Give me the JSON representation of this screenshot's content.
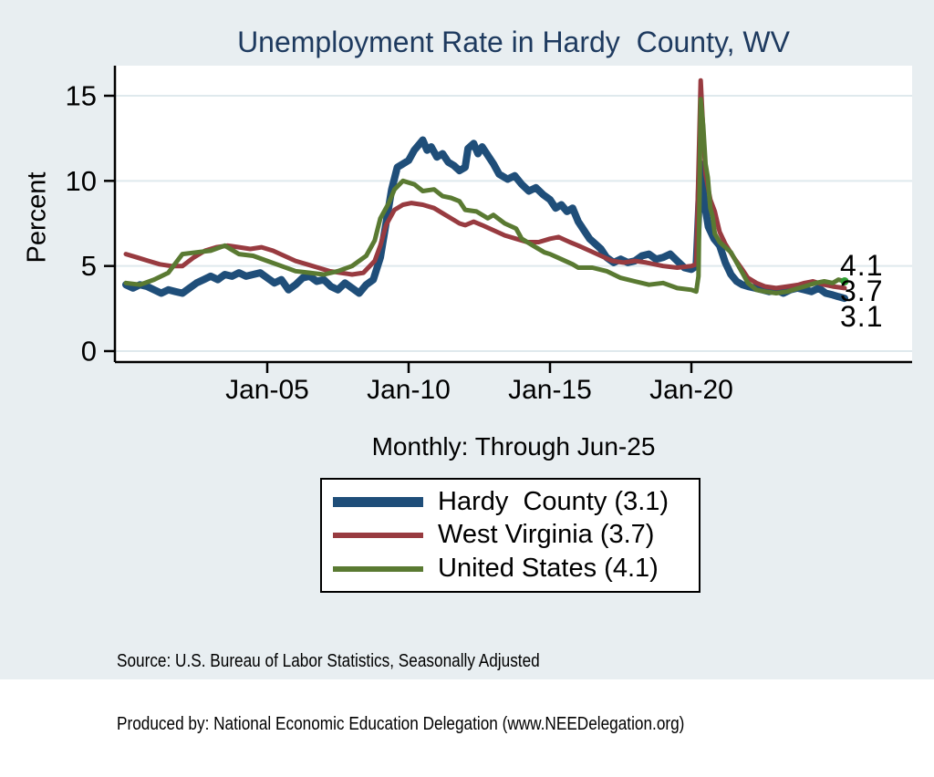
{
  "title": "Unemployment Rate in Hardy  County, WV",
  "subtitle": "Monthly: Through Jun-25",
  "end_labels": [
    "4.1",
    "3.7",
    "3.1"
  ],
  "legend": {
    "items": [
      {
        "label": "Hardy  County (3.1)",
        "color": "#1f4e79",
        "swatch_height": 11
      },
      {
        "label": "West Virginia (3.7)",
        "color": "#983b40",
        "swatch_height": 6
      },
      {
        "label": "United States (4.1)",
        "color": "#5a7a32",
        "swatch_height": 6
      }
    ]
  },
  "notes": [
    "Source: U.S. Bureau of Labor Statistics, Seasonally Adjusted",
    "Produced by: National Economic Education Delegation (www.NEEDelegation.org)"
  ],
  "colors": {
    "background": "#e8eef1",
    "plot_background": "#ffffff",
    "gridline": "#dfe9ed",
    "axis": "#000000",
    "title_text": "#1e3a5f",
    "hardy_navy": "#1f4e79",
    "wv_maroon": "#983b40",
    "us_olive": "#5a7a32",
    "end_marker_green": "#2f9e33"
  },
  "chart_data": {
    "type": "line",
    "title": "Unemployment Rate in Hardy  County, WV",
    "xlabel": "Monthly: Through Jun-25",
    "ylabel": "Percent",
    "ylim": [
      0,
      16
    ],
    "grid": "horizontal",
    "legend_position": "below",
    "x_unit": "decimal_year",
    "x_ticks": {
      "labels": [
        "Jan-05",
        "Jan-10",
        "Jan-15",
        "Jan-20"
      ],
      "years": [
        2005,
        2010,
        2015,
        2020
      ]
    },
    "y_ticks": [
      0,
      5,
      10,
      15
    ],
    "series": [
      {
        "name": "Hardy County",
        "latest_value": 3.1,
        "color": "#1f4e79",
        "line_width": 8,
        "end_marker": false,
        "points": [
          [
            2000.0,
            3.9
          ],
          [
            2000.25,
            3.7
          ],
          [
            2000.5,
            3.9
          ],
          [
            2000.75,
            3.8
          ],
          [
            2001.0,
            3.6
          ],
          [
            2001.25,
            3.4
          ],
          [
            2001.5,
            3.6
          ],
          [
            2001.75,
            3.5
          ],
          [
            2002.0,
            3.4
          ],
          [
            2002.25,
            3.7
          ],
          [
            2002.5,
            4.0
          ],
          [
            2002.75,
            4.2
          ],
          [
            2003.0,
            4.4
          ],
          [
            2003.25,
            4.2
          ],
          [
            2003.5,
            4.5
          ],
          [
            2003.75,
            4.4
          ],
          [
            2004.0,
            4.6
          ],
          [
            2004.25,
            4.4
          ],
          [
            2004.5,
            4.5
          ],
          [
            2004.75,
            4.6
          ],
          [
            2005.0,
            4.3
          ],
          [
            2005.25,
            4.0
          ],
          [
            2005.5,
            4.2
          ],
          [
            2005.75,
            3.6
          ],
          [
            2006.0,
            3.9
          ],
          [
            2006.25,
            4.3
          ],
          [
            2006.5,
            4.4
          ],
          [
            2006.75,
            4.1
          ],
          [
            2007.0,
            4.2
          ],
          [
            2007.25,
            3.8
          ],
          [
            2007.5,
            3.6
          ],
          [
            2007.75,
            4.0
          ],
          [
            2008.0,
            3.7
          ],
          [
            2008.25,
            3.4
          ],
          [
            2008.5,
            3.9
          ],
          [
            2008.75,
            4.2
          ],
          [
            2009.0,
            5.5
          ],
          [
            2009.2,
            7.5
          ],
          [
            2009.4,
            9.5
          ],
          [
            2009.6,
            10.8
          ],
          [
            2009.8,
            11.0
          ],
          [
            2010.0,
            11.2
          ],
          [
            2010.2,
            11.8
          ],
          [
            2010.4,
            12.2
          ],
          [
            2010.5,
            12.4
          ],
          [
            2010.65,
            11.8
          ],
          [
            2010.8,
            12.0
          ],
          [
            2011.0,
            11.4
          ],
          [
            2011.2,
            11.6
          ],
          [
            2011.4,
            11.1
          ],
          [
            2011.6,
            10.9
          ],
          [
            2011.8,
            10.6
          ],
          [
            2012.0,
            10.8
          ],
          [
            2012.1,
            11.9
          ],
          [
            2012.3,
            12.2
          ],
          [
            2012.45,
            11.6
          ],
          [
            2012.6,
            12.0
          ],
          [
            2012.8,
            11.5
          ],
          [
            2013.0,
            11.0
          ],
          [
            2013.2,
            10.4
          ],
          [
            2013.5,
            10.1
          ],
          [
            2013.75,
            10.3
          ],
          [
            2014.0,
            9.8
          ],
          [
            2014.25,
            9.4
          ],
          [
            2014.5,
            9.6
          ],
          [
            2014.75,
            9.2
          ],
          [
            2015.0,
            8.9
          ],
          [
            2015.2,
            8.4
          ],
          [
            2015.4,
            8.6
          ],
          [
            2015.6,
            8.2
          ],
          [
            2015.8,
            8.4
          ],
          [
            2016.0,
            7.6
          ],
          [
            2016.2,
            7.1
          ],
          [
            2016.4,
            6.6
          ],
          [
            2016.6,
            6.3
          ],
          [
            2016.8,
            6.0
          ],
          [
            2017.0,
            5.5
          ],
          [
            2017.25,
            5.2
          ],
          [
            2017.5,
            5.4
          ],
          [
            2017.75,
            5.2
          ],
          [
            2018.0,
            5.3
          ],
          [
            2018.25,
            5.6
          ],
          [
            2018.5,
            5.7
          ],
          [
            2018.75,
            5.4
          ],
          [
            2019.0,
            5.5
          ],
          [
            2019.25,
            5.7
          ],
          [
            2019.5,
            5.3
          ],
          [
            2019.75,
            4.9
          ],
          [
            2020.0,
            4.8
          ],
          [
            2020.17,
            5.0
          ],
          [
            2020.33,
            11.0
          ],
          [
            2020.45,
            8.8
          ],
          [
            2020.6,
            7.3
          ],
          [
            2020.8,
            6.6
          ],
          [
            2021.0,
            6.2
          ],
          [
            2021.2,
            5.2
          ],
          [
            2021.4,
            4.5
          ],
          [
            2021.6,
            4.1
          ],
          [
            2021.8,
            3.9
          ],
          [
            2022.0,
            3.8
          ],
          [
            2022.25,
            3.7
          ],
          [
            2022.5,
            3.6
          ],
          [
            2022.75,
            3.5
          ],
          [
            2023.0,
            3.6
          ],
          [
            2023.25,
            3.4
          ],
          [
            2023.5,
            3.6
          ],
          [
            2023.75,
            3.7
          ],
          [
            2024.0,
            3.6
          ],
          [
            2024.25,
            3.5
          ],
          [
            2024.5,
            3.7
          ],
          [
            2024.75,
            3.4
          ],
          [
            2025.0,
            3.3
          ],
          [
            2025.2,
            3.2
          ],
          [
            2025.42,
            3.1
          ]
        ]
      },
      {
        "name": "West Virginia",
        "latest_value": 3.7,
        "color": "#983b40",
        "line_width": 5,
        "end_marker": false,
        "points": [
          [
            2000.0,
            5.7
          ],
          [
            2000.4,
            5.5
          ],
          [
            2000.8,
            5.3
          ],
          [
            2001.2,
            5.1
          ],
          [
            2001.6,
            5.0
          ],
          [
            2002.0,
            5.0
          ],
          [
            2002.4,
            5.5
          ],
          [
            2002.8,
            5.9
          ],
          [
            2003.2,
            6.1
          ],
          [
            2003.6,
            6.2
          ],
          [
            2004.0,
            6.1
          ],
          [
            2004.4,
            6.0
          ],
          [
            2004.8,
            6.1
          ],
          [
            2005.2,
            5.9
          ],
          [
            2005.6,
            5.6
          ],
          [
            2006.0,
            5.3
          ],
          [
            2006.4,
            5.1
          ],
          [
            2006.8,
            4.9
          ],
          [
            2007.2,
            4.7
          ],
          [
            2007.6,
            4.6
          ],
          [
            2008.0,
            4.5
          ],
          [
            2008.4,
            4.6
          ],
          [
            2008.8,
            5.3
          ],
          [
            2009.0,
            6.2
          ],
          [
            2009.2,
            7.4
          ],
          [
            2009.5,
            8.3
          ],
          [
            2009.8,
            8.6
          ],
          [
            2010.1,
            8.7
          ],
          [
            2010.5,
            8.6
          ],
          [
            2010.9,
            8.4
          ],
          [
            2011.2,
            8.1
          ],
          [
            2011.5,
            7.8
          ],
          [
            2011.8,
            7.5
          ],
          [
            2012.0,
            7.4
          ],
          [
            2012.3,
            7.6
          ],
          [
            2012.6,
            7.4
          ],
          [
            2013.0,
            7.1
          ],
          [
            2013.4,
            6.8
          ],
          [
            2013.8,
            6.6
          ],
          [
            2014.2,
            6.4
          ],
          [
            2014.6,
            6.4
          ],
          [
            2015.0,
            6.6
          ],
          [
            2015.3,
            6.7
          ],
          [
            2015.7,
            6.4
          ],
          [
            2016.0,
            6.2
          ],
          [
            2016.4,
            5.9
          ],
          [
            2016.8,
            5.6
          ],
          [
            2017.2,
            5.3
          ],
          [
            2017.6,
            5.2
          ],
          [
            2018.0,
            5.3
          ],
          [
            2018.4,
            5.2
          ],
          [
            2019.0,
            5.0
          ],
          [
            2019.5,
            4.9
          ],
          [
            2020.0,
            5.0
          ],
          [
            2020.17,
            5.1
          ],
          [
            2020.33,
            15.9
          ],
          [
            2020.42,
            12.9
          ],
          [
            2020.5,
            10.4
          ],
          [
            2020.67,
            8.9
          ],
          [
            2020.83,
            8.2
          ],
          [
            2021.0,
            7.0
          ],
          [
            2021.2,
            6.3
          ],
          [
            2021.5,
            5.5
          ],
          [
            2021.8,
            4.8
          ],
          [
            2022.0,
            4.3
          ],
          [
            2022.3,
            4.0
          ],
          [
            2022.6,
            3.8
          ],
          [
            2023.0,
            3.7
          ],
          [
            2023.4,
            3.8
          ],
          [
            2023.8,
            3.9
          ],
          [
            2024.0,
            4.0
          ],
          [
            2024.3,
            4.1
          ],
          [
            2024.7,
            3.9
          ],
          [
            2025.0,
            3.8
          ],
          [
            2025.42,
            3.7
          ]
        ]
      },
      {
        "name": "United States",
        "latest_value": 4.1,
        "color": "#5a7a32",
        "line_width": 5,
        "end_marker": true,
        "points": [
          [
            2000.0,
            4.0
          ],
          [
            2000.5,
            3.9
          ],
          [
            2001.0,
            4.2
          ],
          [
            2001.5,
            4.6
          ],
          [
            2002.0,
            5.7
          ],
          [
            2002.5,
            5.8
          ],
          [
            2003.0,
            5.9
          ],
          [
            2003.5,
            6.2
          ],
          [
            2004.0,
            5.7
          ],
          [
            2004.5,
            5.6
          ],
          [
            2005.0,
            5.3
          ],
          [
            2005.5,
            5.0
          ],
          [
            2006.0,
            4.7
          ],
          [
            2006.5,
            4.6
          ],
          [
            2007.0,
            4.5
          ],
          [
            2007.5,
            4.7
          ],
          [
            2008.0,
            5.0
          ],
          [
            2008.5,
            5.6
          ],
          [
            2008.8,
            6.5
          ],
          [
            2009.0,
            7.8
          ],
          [
            2009.3,
            8.7
          ],
          [
            2009.5,
            9.5
          ],
          [
            2009.8,
            10.0
          ],
          [
            2010.2,
            9.8
          ],
          [
            2010.5,
            9.4
          ],
          [
            2010.9,
            9.5
          ],
          [
            2011.2,
            9.1
          ],
          [
            2011.5,
            9.0
          ],
          [
            2011.8,
            8.8
          ],
          [
            2012.0,
            8.3
          ],
          [
            2012.4,
            8.2
          ],
          [
            2012.8,
            7.8
          ],
          [
            2013.0,
            8.0
          ],
          [
            2013.4,
            7.5
          ],
          [
            2013.8,
            7.2
          ],
          [
            2014.0,
            6.6
          ],
          [
            2014.4,
            6.2
          ],
          [
            2014.8,
            5.8
          ],
          [
            2015.0,
            5.7
          ],
          [
            2015.4,
            5.4
          ],
          [
            2015.8,
            5.1
          ],
          [
            2016.0,
            4.9
          ],
          [
            2016.5,
            4.9
          ],
          [
            2017.0,
            4.7
          ],
          [
            2017.5,
            4.3
          ],
          [
            2018.0,
            4.1
          ],
          [
            2018.5,
            3.9
          ],
          [
            2019.0,
            4.0
          ],
          [
            2019.5,
            3.7
          ],
          [
            2020.0,
            3.6
          ],
          [
            2020.17,
            3.5
          ],
          [
            2020.25,
            4.4
          ],
          [
            2020.33,
            14.8
          ],
          [
            2020.42,
            13.2
          ],
          [
            2020.5,
            11.0
          ],
          [
            2020.58,
            10.2
          ],
          [
            2020.67,
            8.4
          ],
          [
            2020.75,
            7.9
          ],
          [
            2020.83,
            6.9
          ],
          [
            2021.0,
            6.4
          ],
          [
            2021.2,
            6.1
          ],
          [
            2021.4,
            5.8
          ],
          [
            2021.6,
            5.2
          ],
          [
            2021.8,
            4.6
          ],
          [
            2022.0,
            4.0
          ],
          [
            2022.3,
            3.6
          ],
          [
            2022.6,
            3.5
          ],
          [
            2023.0,
            3.4
          ],
          [
            2023.4,
            3.5
          ],
          [
            2023.8,
            3.7
          ],
          [
            2024.0,
            3.8
          ],
          [
            2024.4,
            4.0
          ],
          [
            2024.7,
            4.1
          ],
          [
            2025.0,
            4.0
          ],
          [
            2025.2,
            4.2
          ],
          [
            2025.42,
            4.1
          ]
        ]
      }
    ]
  }
}
